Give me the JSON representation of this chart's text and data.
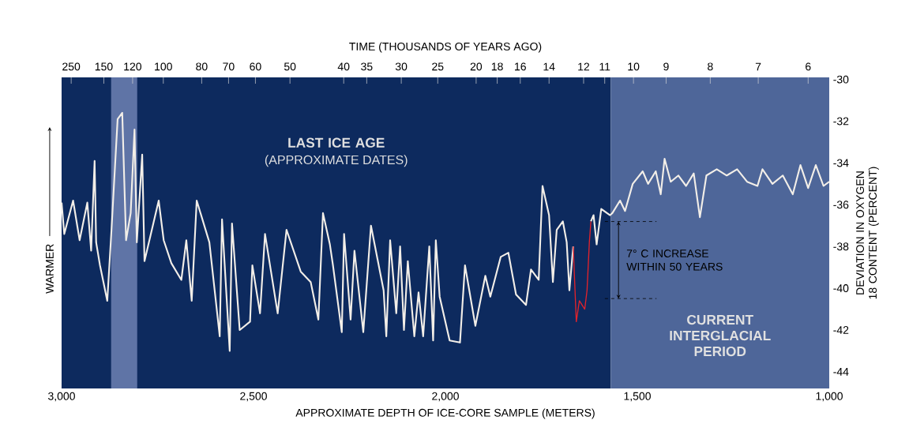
{
  "chart_data": {
    "type": "line",
    "title": "TIME (THOUSANDS OF YEARS AGO)",
    "xlabel": "APPROXIMATE DEPTH OF ICE-CORE SAMPLE (METERS)",
    "ylabel": "DEVIATION IN OXYGEN 18 CONTENT (PERCENT)",
    "xlim": [
      3000,
      1000
    ],
    "xticks": [
      {
        "value": 3000,
        "label": "3,000"
      },
      {
        "value": 2500,
        "label": "2,500"
      },
      {
        "value": 2000,
        "label": "2,000"
      },
      {
        "value": 1500,
        "label": "1,500"
      },
      {
        "value": 1000,
        "label": "1,000"
      }
    ],
    "ylim": [
      -44.8,
      -29.9
    ],
    "yticks": [
      -30,
      -32,
      -34,
      -36,
      -38,
      -40,
      -42,
      -44
    ],
    "series": [
      {
        "color": "#f2eee8",
        "x": [
          3000,
          2993,
          2970,
          2953,
          2933,
          2923,
          2914,
          2910,
          2900,
          2881,
          2870,
          2854,
          2842,
          2832,
          2820,
          2810,
          2804,
          2790,
          2784,
          2747,
          2734,
          2714,
          2688,
          2675,
          2661,
          2648,
          2615,
          2588,
          2582,
          2562,
          2556,
          2536,
          2509,
          2503,
          2483,
          2470,
          2437,
          2414,
          2377,
          2351,
          2331,
          2319,
          2301,
          2293,
          2270,
          2264,
          2247,
          2237,
          2214,
          2194,
          2161,
          2154,
          2144,
          2128,
          2118,
          2108,
          2098,
          2081,
          2070,
          2058,
          2042,
          2032,
          2025,
          2015,
          1989,
          1962,
          1949,
          1922,
          1896,
          1883,
          1856,
          1836,
          1816,
          1790,
          1777,
          1757,
          1747,
          1730,
          1720,
          1710,
          1694,
          1684,
          1677,
          1667,
          1645,
          1621,
          1614,
          1606,
          1594,
          1571,
          1565,
          1545,
          1532,
          1512,
          1486,
          1472,
          1452,
          1439,
          1429,
          1413,
          1393,
          1373,
          1353,
          1337,
          1320,
          1293,
          1267,
          1240,
          1214,
          1187,
          1174,
          1148,
          1121,
          1095,
          1075,
          1055,
          1035,
          1015,
          1000
        ],
        "values": [
          -35.9,
          -37.4,
          -35.8,
          -37.7,
          -35.9,
          -38.2,
          -33.9,
          -37.8,
          -38.9,
          -40.6,
          -37.2,
          -31.9,
          -31.6,
          -37.7,
          -36.4,
          -32.4,
          -37.8,
          -33.6,
          -38.7,
          -35.8,
          -37.7,
          -38.8,
          -39.6,
          -37.7,
          -40.6,
          -35.8,
          -37.8,
          -42.3,
          -36.7,
          -43.0,
          -36.9,
          -42.0,
          -41.6,
          -38.9,
          -41.2,
          -37.4,
          -41.2,
          -37.2,
          -39.2,
          -39.7,
          -41.5,
          -36.4,
          -37.9,
          -38.9,
          -42.1,
          -37.4,
          -41.5,
          -38.2,
          -42.1,
          -37.0,
          -40.1,
          -42.3,
          -37.7,
          -41.2,
          -38.0,
          -42.0,
          -38.7,
          -42.3,
          -40.2,
          -42.3,
          -38.0,
          -42.5,
          -37.7,
          -40.4,
          -42.5,
          -42.6,
          -38.9,
          -41.8,
          -39.4,
          -40.4,
          -38.5,
          -38.3,
          -40.3,
          -40.8,
          -39.1,
          -39.6,
          -35.1,
          -36.5,
          -39.7,
          -37.2,
          -36.8,
          -37.8,
          -40.1,
          -38.0,
          null,
          -36.8,
          -36.5,
          -37.9,
          -36.2,
          -36.5,
          -36.4,
          -35.8,
          -36.3,
          -35.0,
          -34.4,
          -35.0,
          -34.4,
          -35.5,
          -33.8,
          -34.9,
          -34.6,
          -35.1,
          -34.5,
          -36.6,
          -34.6,
          -34.3,
          -34.6,
          -34.3,
          -34.9,
          -35.1,
          -34.3,
          -35.0,
          -34.6,
          -35.5,
          -34.1,
          -35.2,
          -34.1,
          -35.1,
          -34.9
        ]
      },
      {
        "color": "#e3232b",
        "x": [
          1667,
          1659,
          1651,
          1637,
          1631,
          1625,
          1621
        ],
        "values": [
          -38.0,
          -41.6,
          -40.6,
          -41.0,
          -40.1,
          -37.8,
          -36.8
        ]
      }
    ],
    "bands": [
      {
        "axis": "x",
        "from": 3000,
        "to": 1569,
        "color": "#0d2a5e",
        "label": "LAST ICE AGE"
      },
      {
        "axis": "x",
        "from": 2871,
        "to": 2803,
        "color": "#5f74a6"
      },
      {
        "axis": "x",
        "from": 1569,
        "to": 1000,
        "color": "#4e6699",
        "label": "CURRENT INTERGLACIAL PERIOD"
      }
    ],
    "annotations": [
      "(APPROXIMATE DATES)",
      "WARMER",
      "7° C INCREASE WITHIN 50 YEARS",
      "250",
      "150",
      "120",
      "100",
      "80",
      "70",
      "60",
      "50",
      "40",
      "35",
      "30",
      "25",
      "20",
      "18",
      "16",
      "14",
      "12",
      "11",
      "10",
      "9",
      "8",
      "7",
      "6"
    ]
  }
}
